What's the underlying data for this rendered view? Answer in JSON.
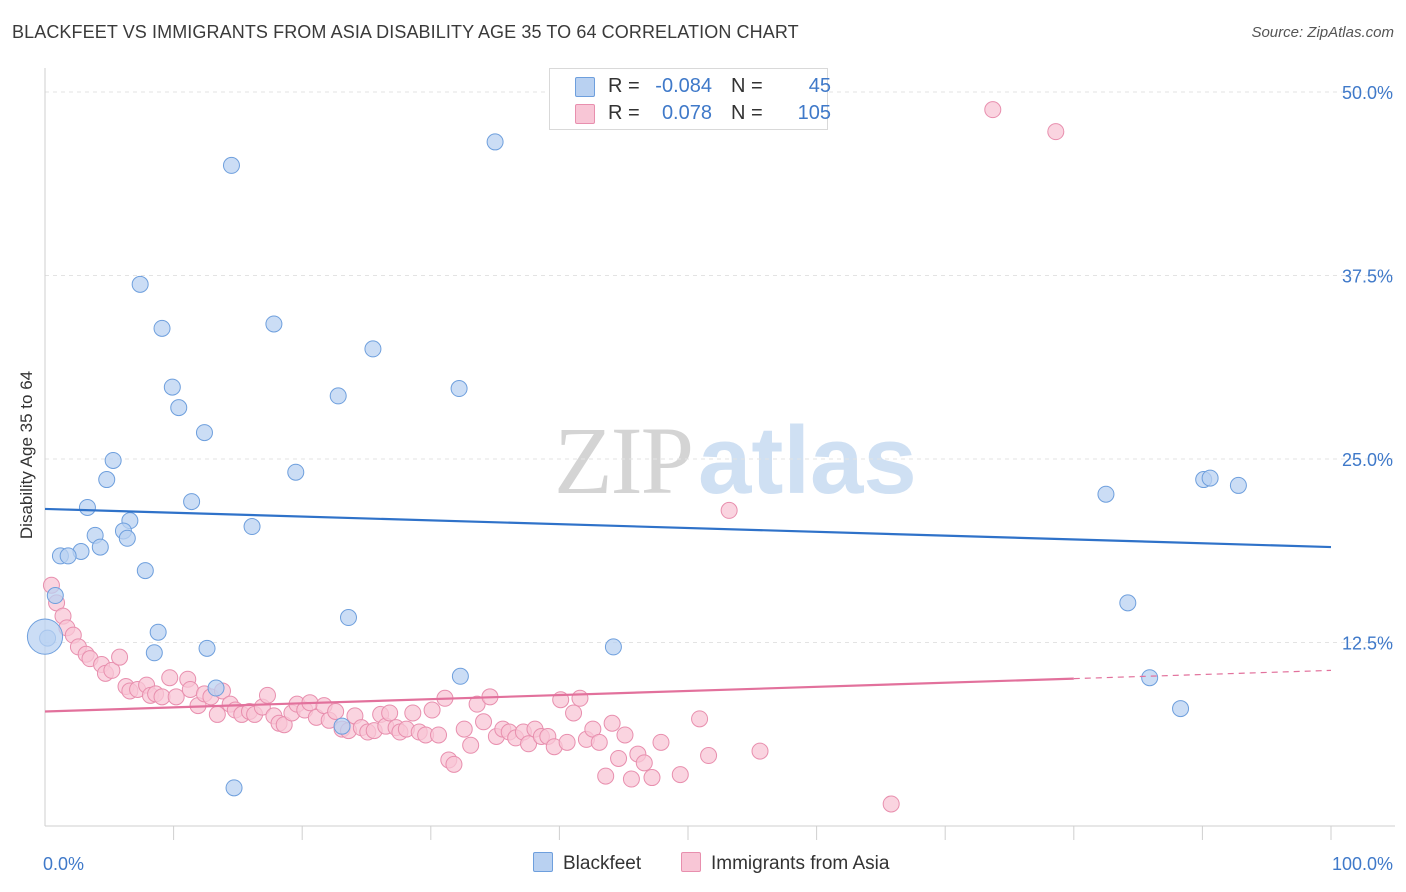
{
  "title": "BLACKFEET VS IMMIGRANTS FROM ASIA DISABILITY AGE 35 TO 64 CORRELATION CHART",
  "source": "Source: ZipAtlas.com",
  "watermark": {
    "zip": "ZIP",
    "atlas": "atlas"
  },
  "legend": {
    "rows": [
      {
        "series": "Blackfeet",
        "r_label": "R =",
        "r_value": "-0.084",
        "n_label": "N =",
        "n_value": "45"
      },
      {
        "series": "Immigrants from Asia",
        "r_label": "R =",
        "r_value": "0.078",
        "n_label": "N =",
        "n_value": "105"
      }
    ]
  },
  "chart_data": {
    "type": "scatter",
    "title": "BLACKFEET VS IMMIGRANTS FROM ASIA DISABILITY AGE 35 TO 64 CORRELATION CHART",
    "xlabel": "",
    "ylabel": "Disability Age 35 to 64",
    "xlim": [
      0,
      100
    ],
    "ylim": [
      0,
      51.5
    ],
    "x_tick_labels": [
      {
        "value": 0,
        "label": "0.0%"
      },
      {
        "value": 100,
        "label": "100.0%"
      }
    ],
    "y_tick_labels": [
      {
        "value": 12.5,
        "label": "12.5%"
      },
      {
        "value": 25.0,
        "label": "25.0%"
      },
      {
        "value": 37.5,
        "label": "37.5%"
      },
      {
        "value": 50.0,
        "label": "50.0%"
      }
    ],
    "x_minor_ticks": [
      10,
      20,
      30,
      40,
      50,
      60,
      70,
      80,
      90,
      100
    ],
    "grid": true,
    "colors": {
      "blackfeet_fill": "#b9d1f1",
      "blackfeet_stroke": "#6e9fdd",
      "blackfeet_line": "#2f72c9",
      "asia_fill": "#f8c6d6",
      "asia_stroke": "#e88fae",
      "asia_line": "#e2719c",
      "tick_label": "#3f79c9",
      "grid": "#e3e3e3"
    },
    "series": [
      {
        "name": "Blackfeet",
        "trend": {
          "x": [
            0,
            100
          ],
          "y": [
            21.6,
            19.0
          ],
          "dashed_from": null
        },
        "points": [
          [
            14.5,
            45.0
          ],
          [
            35,
            46.6
          ],
          [
            7.4,
            36.9
          ],
          [
            9.1,
            33.9
          ],
          [
            17.8,
            34.2
          ],
          [
            25.5,
            32.5
          ],
          [
            9.9,
            29.9
          ],
          [
            22.8,
            29.3
          ],
          [
            32.2,
            29.8
          ],
          [
            10.4,
            28.5
          ],
          [
            12.4,
            26.8
          ],
          [
            5.3,
            24.9
          ],
          [
            19.5,
            24.1
          ],
          [
            4.8,
            23.6
          ],
          [
            11.4,
            22.1
          ],
          [
            3.3,
            21.7
          ],
          [
            6.6,
            20.8
          ],
          [
            16.1,
            20.4
          ],
          [
            6.1,
            20.1
          ],
          [
            3.9,
            19.8
          ],
          [
            6.4,
            19.6
          ],
          [
            4.3,
            19.0
          ],
          [
            2.8,
            18.7
          ],
          [
            1.2,
            18.4
          ],
          [
            1.8,
            18.4
          ],
          [
            7.8,
            17.4
          ],
          [
            0.8,
            15.7
          ],
          [
            23.6,
            14.2
          ],
          [
            8.8,
            13.2
          ],
          [
            0.2,
            12.8
          ],
          [
            12.6,
            12.1
          ],
          [
            8.5,
            11.8
          ],
          [
            44.2,
            12.2
          ],
          [
            32.3,
            10.2
          ],
          [
            13.3,
            9.4
          ],
          [
            23.1,
            6.8
          ],
          [
            14.7,
            2.6
          ],
          [
            82.5,
            22.6
          ],
          [
            90.1,
            23.6
          ],
          [
            90.6,
            23.7
          ],
          [
            92.8,
            23.2
          ],
          [
            84.2,
            15.2
          ],
          [
            85.9,
            10.1
          ],
          [
            88.3,
            8.0
          ],
          [
            0,
            12.9
          ]
        ],
        "sizes": [
          1,
          1,
          1,
          1,
          1,
          1,
          1,
          1,
          1,
          1,
          1,
          1,
          1,
          1,
          1,
          1,
          1,
          1,
          1,
          1,
          1,
          1,
          1,
          1,
          1,
          1,
          1,
          1,
          1,
          1,
          1,
          1,
          1,
          1,
          1,
          1,
          1,
          1,
          1,
          1,
          1,
          1,
          1,
          1,
          2.2
        ]
      },
      {
        "name": "Immigrants from Asia",
        "trend": {
          "x": [
            0,
            100
          ],
          "y": [
            7.8,
            10.6
          ],
          "dashed_from": 80
        },
        "points": [
          [
            73.7,
            48.8
          ],
          [
            78.6,
            47.3
          ],
          [
            53.2,
            21.5
          ],
          [
            0.5,
            16.4
          ],
          [
            0.9,
            15.2
          ],
          [
            1.4,
            14.3
          ],
          [
            1.7,
            13.5
          ],
          [
            2.2,
            13.0
          ],
          [
            2.6,
            12.2
          ],
          [
            3.2,
            11.7
          ],
          [
            3.5,
            11.4
          ],
          [
            4.4,
            11.0
          ],
          [
            4.7,
            10.4
          ],
          [
            5.2,
            10.6
          ],
          [
            5.8,
            11.5
          ],
          [
            6.3,
            9.5
          ],
          [
            6.6,
            9.2
          ],
          [
            7.2,
            9.3
          ],
          [
            7.9,
            9.6
          ],
          [
            8.2,
            8.9
          ],
          [
            8.6,
            9.0
          ],
          [
            9.1,
            8.8
          ],
          [
            9.7,
            10.1
          ],
          [
            10.2,
            8.8
          ],
          [
            11.1,
            10.0
          ],
          [
            11.3,
            9.3
          ],
          [
            11.9,
            8.2
          ],
          [
            12.4,
            9.0
          ],
          [
            12.9,
            8.8
          ],
          [
            13.4,
            7.6
          ],
          [
            13.8,
            9.2
          ],
          [
            14.4,
            8.3
          ],
          [
            14.8,
            7.9
          ],
          [
            15.3,
            7.6
          ],
          [
            15.9,
            7.8
          ],
          [
            16.3,
            7.6
          ],
          [
            16.9,
            8.1
          ],
          [
            17.3,
            8.9
          ],
          [
            17.8,
            7.5
          ],
          [
            18.2,
            7.0
          ],
          [
            18.6,
            6.9
          ],
          [
            19.2,
            7.7
          ],
          [
            19.6,
            8.3
          ],
          [
            20.2,
            7.9
          ],
          [
            20.6,
            8.4
          ],
          [
            21.1,
            7.4
          ],
          [
            21.7,
            8.2
          ],
          [
            22.1,
            7.2
          ],
          [
            22.6,
            7.8
          ],
          [
            23.1,
            6.6
          ],
          [
            23.6,
            6.5
          ],
          [
            24.1,
            7.5
          ],
          [
            24.6,
            6.7
          ],
          [
            25.1,
            6.4
          ],
          [
            25.6,
            6.5
          ],
          [
            26.1,
            7.6
          ],
          [
            26.5,
            6.8
          ],
          [
            26.8,
            7.7
          ],
          [
            27.3,
            6.7
          ],
          [
            27.6,
            6.4
          ],
          [
            28.1,
            6.6
          ],
          [
            28.6,
            7.7
          ],
          [
            29.1,
            6.4
          ],
          [
            29.6,
            6.2
          ],
          [
            30.1,
            7.9
          ],
          [
            30.6,
            6.2
          ],
          [
            31.1,
            8.7
          ],
          [
            31.4,
            4.5
          ],
          [
            31.8,
            4.2
          ],
          [
            32.6,
            6.6
          ],
          [
            33.1,
            5.5
          ],
          [
            33.6,
            8.3
          ],
          [
            34.1,
            7.1
          ],
          [
            34.6,
            8.8
          ],
          [
            35.1,
            6.1
          ],
          [
            35.6,
            6.6
          ],
          [
            36.1,
            6.4
          ],
          [
            36.6,
            6.0
          ],
          [
            37.2,
            6.4
          ],
          [
            37.6,
            5.6
          ],
          [
            38.1,
            6.6
          ],
          [
            38.6,
            6.1
          ],
          [
            39.1,
            6.1
          ],
          [
            39.6,
            5.4
          ],
          [
            40.1,
            8.6
          ],
          [
            40.6,
            5.7
          ],
          [
            41.1,
            7.7
          ],
          [
            41.6,
            8.7
          ],
          [
            42.1,
            5.9
          ],
          [
            42.6,
            6.6
          ],
          [
            43.1,
            5.7
          ],
          [
            43.6,
            3.4
          ],
          [
            44.1,
            7.0
          ],
          [
            44.6,
            4.6
          ],
          [
            45.1,
            6.2
          ],
          [
            45.6,
            3.2
          ],
          [
            46.1,
            4.9
          ],
          [
            46.6,
            4.3
          ],
          [
            47.2,
            3.3
          ],
          [
            47.9,
            5.7
          ],
          [
            49.4,
            3.5
          ],
          [
            50.9,
            7.3
          ],
          [
            51.6,
            4.8
          ],
          [
            55.6,
            5.1
          ],
          [
            65.8,
            1.5
          ]
        ]
      }
    ]
  }
}
